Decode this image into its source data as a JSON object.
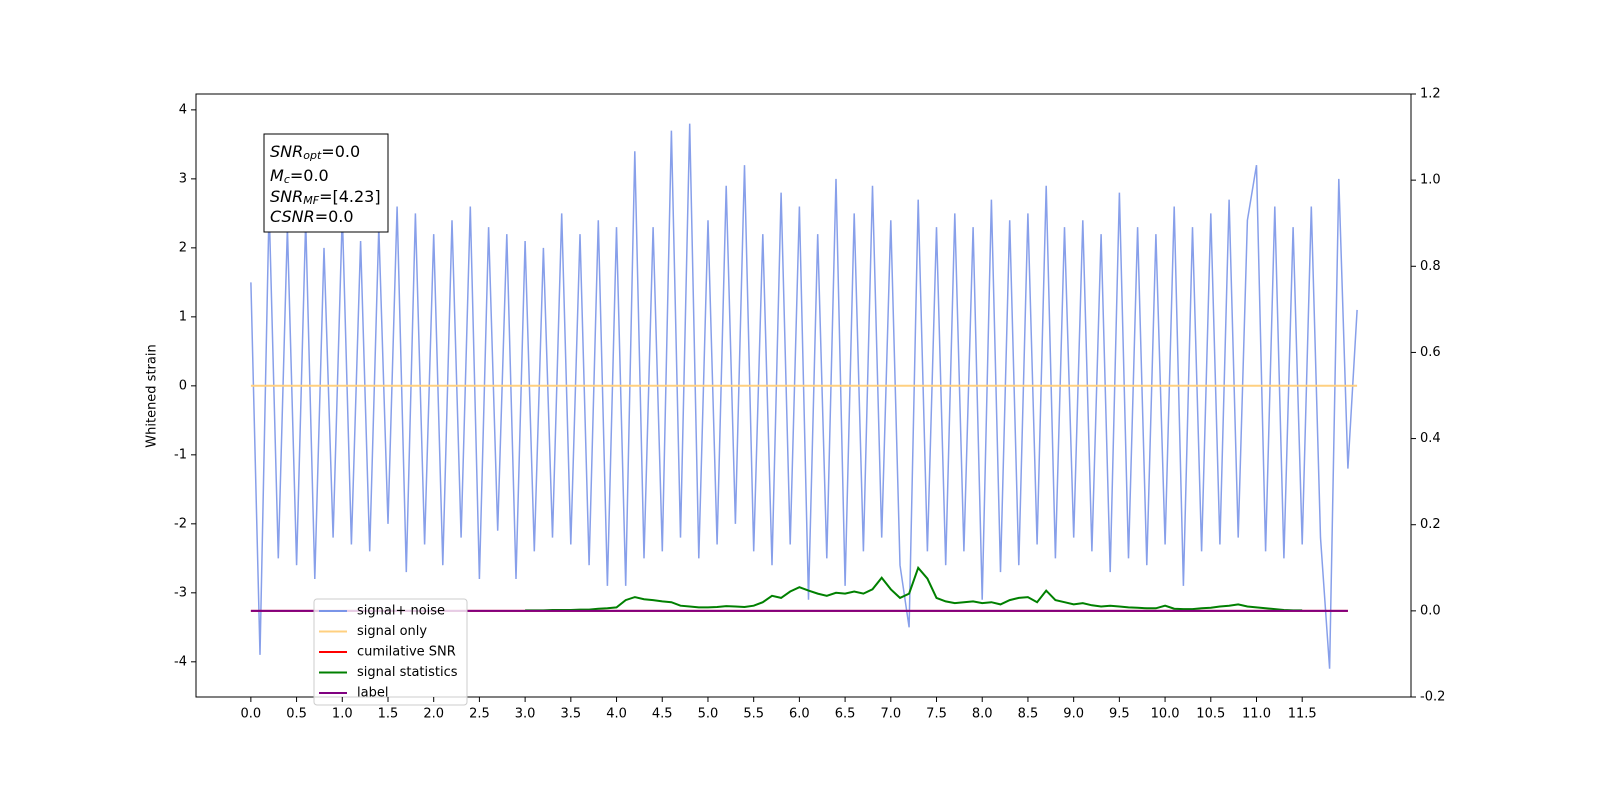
{
  "chart_data": {
    "type": "line",
    "y_label": "Whitened strain",
    "xlim": [
      -0.6,
      12.69
    ],
    "ylim": [
      -4.51,
      4.23
    ],
    "y2lim": [
      -0.2,
      1.2
    ],
    "xticks": [
      {
        "value": 0,
        "label": "0.0"
      },
      0.5,
      {
        "value": 1,
        "label": "1.0"
      },
      1.5,
      {
        "value": 2,
        "label": "2.0"
      },
      2.5,
      {
        "value": 3,
        "label": "3.0"
      },
      3.5,
      {
        "value": 4,
        "label": "4.0"
      },
      4.5,
      {
        "value": 5,
        "label": "5.0"
      },
      5.5,
      {
        "value": 6,
        "label": "6.0"
      },
      6.5,
      {
        "value": 7,
        "label": "7.0"
      },
      7.5,
      {
        "value": 8,
        "label": "8.0"
      },
      8.5,
      {
        "value": 9,
        "label": "9.0"
      },
      9.5,
      {
        "value": 10,
        "label": "10.0"
      },
      10.5,
      {
        "value": 11,
        "label": "11.0"
      },
      11.5
    ],
    "yticks": [
      -4,
      -3,
      -2,
      -1,
      0,
      1,
      2,
      3,
      4
    ],
    "y2ticks": [
      -0.2,
      {
        "value": 0,
        "label": "0.0"
      },
      0.2,
      0.4,
      0.6,
      0.8,
      {
        "value": 1,
        "label": "1.0"
      },
      1.2
    ],
    "legend": "lower left",
    "annotation": [
      {
        "main": "SNR",
        "sub": "opt",
        "rest": "=0.0"
      },
      {
        "main": "M",
        "sub": "c",
        "rest": "=0.0"
      },
      {
        "main": "SNR",
        "sub": "MF",
        "rest": "=[4.23]"
      },
      {
        "main": "CSNR",
        "sub": "",
        "rest": "=0.0"
      }
    ],
    "series": [
      {
        "name": "signal+ noise",
        "color": "#7a95e8",
        "x": [
          0.0,
          0.1,
          0.2,
          0.3,
          0.4,
          0.5,
          0.6,
          0.7,
          0.8,
          0.9,
          1.0,
          1.1,
          1.2,
          1.3,
          1.4,
          1.5,
          1.6,
          1.7,
          1.8,
          1.9,
          2.0,
          2.1,
          2.2,
          2.3,
          2.4,
          2.5,
          2.6,
          2.7,
          2.8,
          2.9,
          3.0,
          3.1,
          3.2,
          3.3,
          3.4,
          3.5,
          3.6,
          3.7,
          3.8,
          3.9,
          4.0,
          4.1,
          4.2,
          4.3,
          4.4,
          4.5,
          4.6,
          4.7,
          4.8,
          4.9,
          5.0,
          5.1,
          5.2,
          5.3,
          5.4,
          5.5,
          5.6,
          5.7,
          5.8,
          5.9,
          6.0,
          6.1,
          6.2,
          6.3,
          6.4,
          6.5,
          6.6,
          6.7,
          6.8,
          6.9,
          7.0,
          7.1,
          7.2,
          7.3,
          7.4,
          7.5,
          7.6,
          7.7,
          7.8,
          7.9,
          8.0,
          8.1,
          8.2,
          8.3,
          8.4,
          8.5,
          8.6,
          8.7,
          8.8,
          8.9,
          9.0,
          9.1,
          9.2,
          9.3,
          9.4,
          9.5,
          9.6,
          9.7,
          9.8,
          9.9,
          10.0,
          10.1,
          10.2,
          10.3,
          10.4,
          10.5,
          10.6,
          10.7,
          10.8,
          10.9,
          11.0,
          11.1,
          11.2,
          11.3,
          11.4,
          11.5,
          11.6,
          11.7,
          11.8,
          11.9,
          12.0,
          12.1
        ],
        "values": [
          1.5,
          -3.9,
          2.6,
          -2.5,
          2.3,
          -2.6,
          2.4,
          -2.8,
          2.0,
          -2.2,
          2.5,
          -2.3,
          2.1,
          -2.4,
          2.3,
          -2.0,
          2.6,
          -2.7,
          2.5,
          -2.3,
          2.2,
          -2.6,
          2.4,
          -2.2,
          2.6,
          -2.8,
          2.3,
          -2.1,
          2.2,
          -2.8,
          2.1,
          -2.4,
          2.0,
          -2.2,
          2.5,
          -2.3,
          2.2,
          -2.6,
          2.4,
          -2.9,
          2.3,
          -2.9,
          3.4,
          -2.5,
          2.3,
          -2.4,
          3.7,
          -2.2,
          3.8,
          -2.5,
          2.4,
          -2.3,
          2.9,
          -2.0,
          3.2,
          -2.4,
          2.2,
          -2.6,
          2.8,
          -2.3,
          2.6,
          -3.1,
          2.2,
          -2.5,
          3.0,
          -2.9,
          2.5,
          -2.4,
          2.9,
          -2.2,
          2.4,
          -2.6,
          -3.5,
          2.7,
          -2.4,
          2.3,
          -2.6,
          2.5,
          -2.4,
          2.3,
          -3.1,
          2.7,
          -2.7,
          2.4,
          -2.6,
          2.5,
          -2.3,
          2.9,
          -2.5,
          2.3,
          -2.2,
          2.4,
          -2.4,
          2.2,
          -2.7,
          2.8,
          -2.5,
          2.3,
          -2.6,
          2.2,
          -2.3,
          2.6,
          -2.9,
          2.3,
          -2.4,
          2.5,
          -2.3,
          2.7,
          -2.2,
          2.4,
          3.2,
          -2.4,
          2.6,
          -2.5,
          2.3,
          -2.3,
          2.6,
          -2.2,
          -4.1,
          3.0,
          -1.2,
          1.1
        ]
      },
      {
        "name": "signal only",
        "color": "#ffd080",
        "x": [
          0.0,
          12.1
        ],
        "values": [
          0,
          0
        ]
      },
      {
        "name": "cumilative SNR",
        "color": "#ff0000",
        "axis": "y2",
        "x": [
          0.0,
          12.0
        ],
        "values": [
          0,
          0
        ]
      },
      {
        "name": "signal statistics",
        "color": "#008000",
        "axis": "y2",
        "x": [
          3.0,
          3.1,
          3.2,
          3.3,
          3.4,
          3.5,
          3.6,
          3.7,
          3.8,
          3.9,
          4.0,
          4.1,
          4.2,
          4.3,
          4.4,
          4.5,
          4.6,
          4.7,
          4.8,
          4.9,
          5.0,
          5.1,
          5.2,
          5.3,
          5.4,
          5.5,
          5.6,
          5.7,
          5.8,
          5.9,
          6.0,
          6.1,
          6.2,
          6.3,
          6.4,
          6.5,
          6.6,
          6.7,
          6.8,
          6.9,
          7.0,
          7.1,
          7.2,
          7.3,
          7.4,
          7.5,
          7.6,
          7.7,
          7.8,
          7.9,
          8.0,
          8.1,
          8.2,
          8.3,
          8.4,
          8.5,
          8.6,
          8.7,
          8.8,
          8.9,
          9.0,
          9.1,
          9.2,
          9.3,
          9.4,
          9.5,
          9.6,
          9.7,
          9.8,
          9.9,
          10.0,
          10.1,
          10.2,
          10.3,
          10.4,
          10.5,
          10.6,
          10.7,
          10.8,
          10.9,
          11.0,
          11.1,
          11.2,
          11.3,
          11.4,
          11.5
        ],
        "values": [
          0.001,
          0.001,
          0.001,
          0.002,
          0.002,
          0.002,
          0.003,
          0.003,
          0.005,
          0.006,
          0.008,
          0.025,
          0.032,
          0.027,
          0.025,
          0.022,
          0.02,
          0.012,
          0.01,
          0.008,
          0.008,
          0.009,
          0.011,
          0.01,
          0.009,
          0.012,
          0.02,
          0.035,
          0.03,
          0.045,
          0.055,
          0.047,
          0.04,
          0.035,
          0.042,
          0.04,
          0.045,
          0.04,
          0.05,
          0.077,
          0.05,
          0.03,
          0.04,
          0.1,
          0.075,
          0.03,
          0.022,
          0.018,
          0.02,
          0.022,
          0.018,
          0.02,
          0.015,
          0.025,
          0.03,
          0.032,
          0.02,
          0.047,
          0.025,
          0.02,
          0.015,
          0.018,
          0.013,
          0.01,
          0.012,
          0.01,
          0.008,
          0.007,
          0.006,
          0.006,
          0.012,
          0.005,
          0.004,
          0.004,
          0.006,
          0.007,
          0.01,
          0.012,
          0.015,
          0.01,
          0.008,
          0.006,
          0.004,
          0.002,
          0.001,
          0.001
        ]
      },
      {
        "name": "label",
        "color": "#800080",
        "axis": "y2",
        "x": [
          0.0,
          12.0
        ],
        "values": [
          0,
          0
        ]
      }
    ]
  }
}
